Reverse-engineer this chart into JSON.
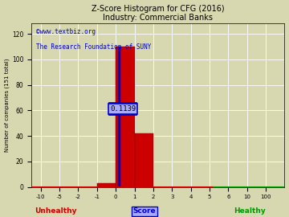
{
  "title": "Z-Score Histogram for CFG (2016)",
  "subtitle": "Industry: Commercial Banks",
  "xlabel_left": "Unhealthy",
  "xlabel_center": "Score",
  "xlabel_right": "Healthy",
  "ylabel": "Number of companies (151 total)",
  "watermark1": "©www.textbiz.org",
  "watermark2": "The Research Foundation of SUNY",
  "annotation": "0.1139",
  "bg_color": "#d8d8b0",
  "tick_labels": [
    "-10",
    "-5",
    "-2",
    "-1",
    "0",
    "1",
    "2",
    "3",
    "4",
    "5",
    "6",
    "10",
    "100"
  ],
  "yticks": [
    0,
    20,
    40,
    60,
    80,
    100,
    120
  ],
  "ylim": [
    0,
    128
  ],
  "grid_color": "#ffffff",
  "title_color": "#000000",
  "watermark1_color": "#0000cc",
  "watermark2_color": "#0000cc",
  "unhealthy_color": "#cc0000",
  "score_color": "#0000cc",
  "healthy_color": "#009900",
  "hline_color": "#0000cc",
  "cfg_color": "#0000cc",
  "bar_color": "#cc0000",
  "green_line_color": "#009900",
  "red_baseline_color": "#cc0000"
}
